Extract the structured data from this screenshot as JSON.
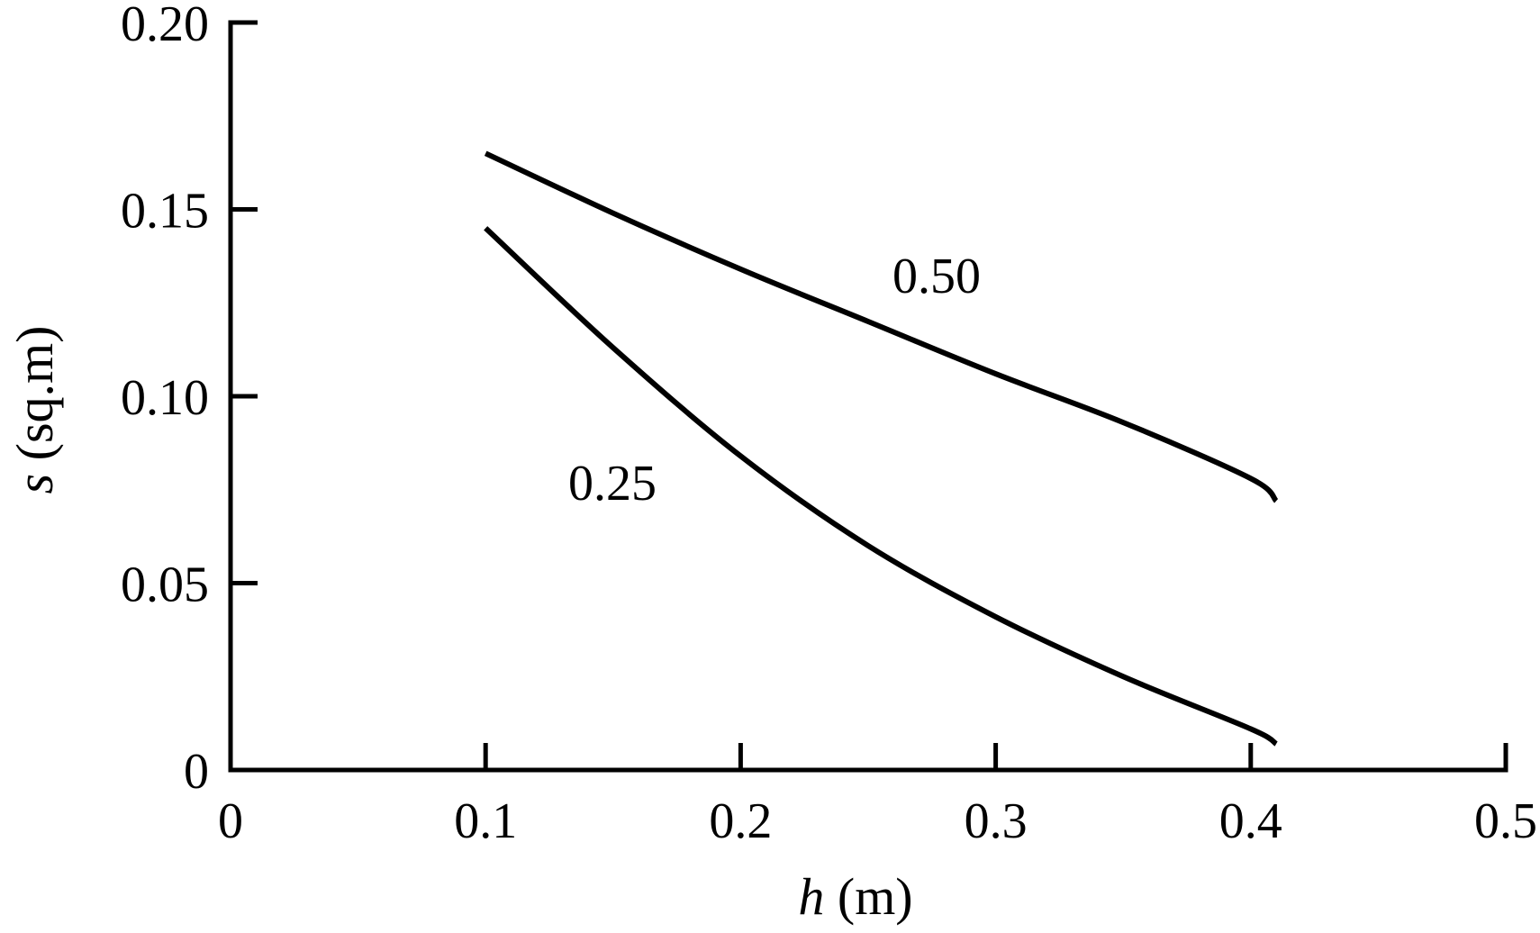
{
  "chart_data": {
    "type": "line",
    "xlabel": {
      "var": "h",
      "unit": " (m)"
    },
    "ylabel": {
      "var": "s",
      "unit": " (sq.m)"
    },
    "xlim": [
      0,
      0.5
    ],
    "ylim": [
      0,
      0.2
    ],
    "x_ticks": [
      "0",
      "0.1",
      "0.2",
      "0.3",
      "0.4",
      "0.5"
    ],
    "x_tick_values": [
      0,
      0.1,
      0.2,
      0.3,
      0.4,
      0.5
    ],
    "y_ticks": [
      "0",
      "0.05",
      "0.10",
      "0.15",
      "0.20"
    ],
    "y_tick_values": [
      0,
      0.05,
      0.1,
      0.15,
      0.2
    ],
    "grid": false,
    "series": [
      {
        "name": "0.50",
        "x": [
          0.1,
          0.15,
          0.2,
          0.25,
          0.3,
          0.35,
          0.4,
          0.41
        ],
        "y": [
          0.165,
          0.149,
          0.134,
          0.12,
          0.106,
          0.093,
          0.078,
          0.072
        ]
      },
      {
        "name": "0.25",
        "x": [
          0.1,
          0.15,
          0.2,
          0.25,
          0.3,
          0.35,
          0.4,
          0.41
        ],
        "y": [
          0.145,
          0.113,
          0.084,
          0.06,
          0.041,
          0.025,
          0.011,
          0.007
        ]
      }
    ]
  },
  "colors": {
    "axis": "#000000",
    "line": "#000000"
  }
}
